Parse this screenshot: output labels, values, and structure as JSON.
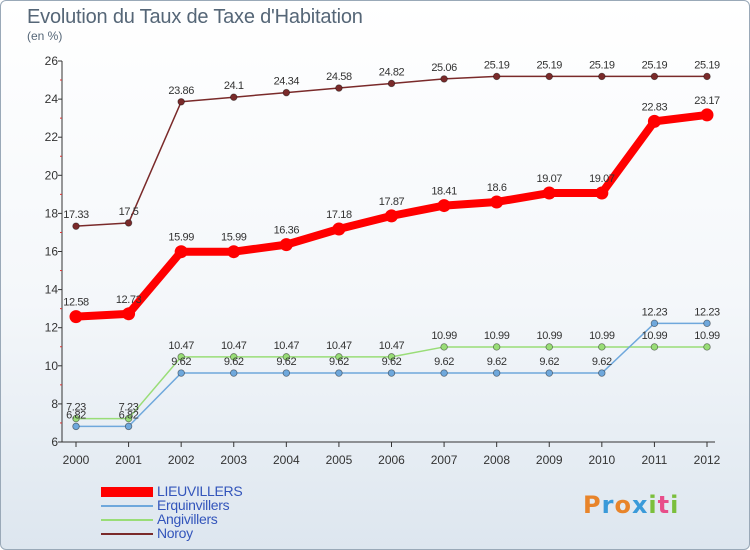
{
  "header": {
    "title": "Evolution du Taux de Taxe d'Habitation",
    "unit": "(en %)"
  },
  "logo": {
    "letters": [
      "P",
      "r",
      "o",
      "x",
      "i",
      "t",
      "i"
    ],
    "colors": [
      "#e8842a",
      "#3a9ad9",
      "#e8842a",
      "#3a9ad9",
      "#7bbf3c",
      "#e84e8a",
      "#7bbf3c"
    ]
  },
  "chart_data": {
    "type": "line",
    "title": "Evolution du Taux de Taxe d'Habitation",
    "ylabel": "(en %)",
    "xlabel": "",
    "x": [
      2000,
      2001,
      2002,
      2003,
      2004,
      2005,
      2006,
      2007,
      2008,
      2009,
      2010,
      2011,
      2012
    ],
    "ylim": [
      6,
      26
    ],
    "yticks": [
      6,
      8,
      10,
      12,
      14,
      16,
      18,
      20,
      22,
      24,
      26
    ],
    "grid": false,
    "legend_position": "bottom-left",
    "series": [
      {
        "name": "LIEUVILLERS",
        "color": "#ff0000",
        "style": "thick",
        "values": [
          12.58,
          12.73,
          15.99,
          15.99,
          16.36,
          17.18,
          17.87,
          18.41,
          18.6,
          19.07,
          19.07,
          22.83,
          23.17
        ],
        "labels": [
          "12.58",
          "12.73",
          "15.99",
          "15.99",
          "16.36",
          "17.18",
          "17.87",
          "18.41",
          "18.6",
          "19.07",
          "19.07",
          "22.83",
          "23.17"
        ]
      },
      {
        "name": "Erquinvillers",
        "color": "#6fa8dc",
        "style": "thin",
        "values": [
          6.82,
          6.82,
          9.62,
          9.62,
          9.62,
          9.62,
          9.62,
          9.62,
          9.62,
          9.62,
          9.62,
          12.23,
          12.23
        ],
        "labels": [
          "6.82",
          "6.82",
          "9.62",
          "9.62",
          "9.62",
          "9.62",
          "9.62",
          "9.62",
          "9.62",
          "9.62",
          "9.62",
          "12.23",
          "12.23"
        ]
      },
      {
        "name": "Angivillers",
        "color": "#99dd77",
        "style": "thin",
        "values": [
          7.23,
          7.23,
          10.47,
          10.47,
          10.47,
          10.47,
          10.47,
          10.99,
          10.99,
          10.99,
          10.99,
          10.99,
          10.99
        ],
        "labels": [
          "7.23",
          "7.23",
          "10.47",
          "10.47",
          "10.47",
          "10.47",
          "10.47",
          "10.99",
          "10.99",
          "10.99",
          "10.99",
          "10.99",
          "10.99"
        ]
      },
      {
        "name": "Noroy",
        "color": "#7a2a2a",
        "style": "thin",
        "values": [
          17.33,
          17.5,
          23.86,
          24.1,
          24.34,
          24.58,
          24.82,
          25.06,
          25.19,
          25.19,
          25.19,
          25.19,
          25.19
        ],
        "labels": [
          "17.33",
          "17.5",
          "23.86",
          "24.1",
          "24.34",
          "24.58",
          "24.82",
          "25.06",
          "25.19",
          "25.19",
          "25.19",
          "25.19",
          "25.19"
        ]
      }
    ]
  }
}
